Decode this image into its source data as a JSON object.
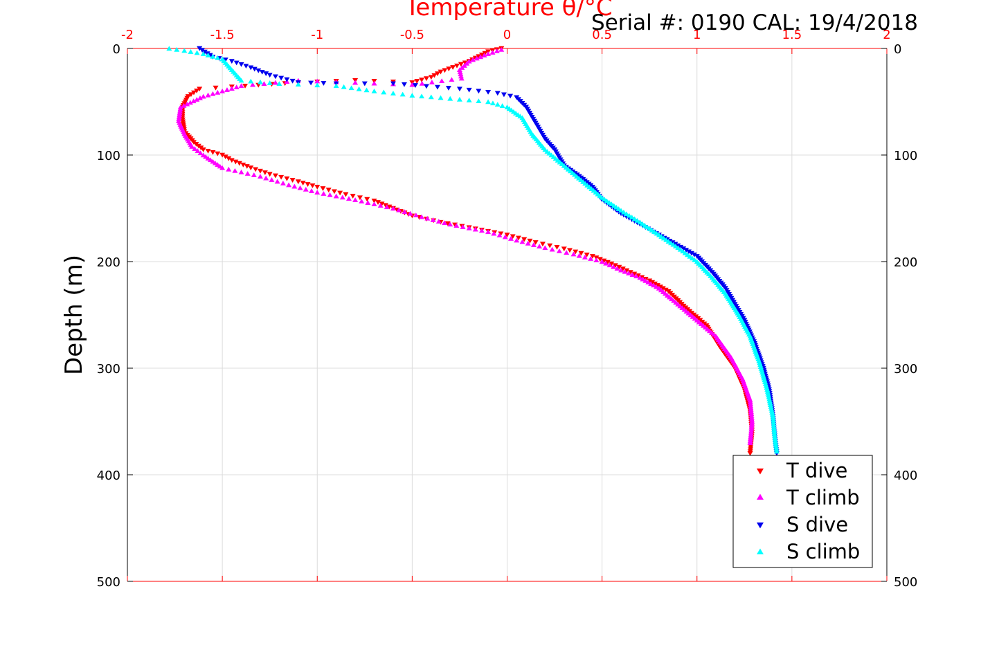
{
  "header": {
    "serial_label": "Serial #: 0190  CAL: 19/4/2018"
  },
  "colors": {
    "t_dive": "#ff0000",
    "t_climb": "#ff00ff",
    "s_dive": "#0000ee",
    "s_climb": "#00ffff",
    "top_axis": "#ff0000",
    "grid": "#dcdcdc"
  },
  "chart_data": {
    "type": "scatter",
    "title": "Temperature θ/°C",
    "xlabel": "Temperature θ/°C",
    "ylabel": "Depth (m)",
    "xlim": [
      -2,
      2
    ],
    "ylim": [
      0,
      500
    ],
    "y_reversed": true,
    "x_ticks": [
      -2,
      -1.5,
      -1,
      -0.5,
      0,
      0.5,
      1,
      1.5,
      2
    ],
    "x_tick_labels": [
      "-2",
      "-1.5",
      "-1",
      "-0.5",
      "0",
      "0.5",
      "1",
      "1.5",
      "2"
    ],
    "y_ticks": [
      0,
      100,
      200,
      300,
      400,
      500
    ],
    "y_tick_labels": [
      "0",
      "100",
      "200",
      "300",
      "400",
      "500"
    ],
    "grid": true,
    "legend_position": "bottom-right",
    "series": [
      {
        "name": "T dive",
        "marker": "triangle-down",
        "points": [
          [
            -0.03,
            0
          ],
          [
            -0.1,
            3
          ],
          [
            -0.2,
            12
          ],
          [
            -0.35,
            22
          ],
          [
            -0.4,
            27
          ],
          [
            -0.5,
            32
          ],
          [
            -0.8,
            30
          ],
          [
            -1.1,
            32
          ],
          [
            -1.45,
            36
          ],
          [
            -1.62,
            38
          ],
          [
            -1.68,
            45
          ],
          [
            -1.71,
            55
          ],
          [
            -1.71,
            65
          ],
          [
            -1.7,
            78
          ],
          [
            -1.65,
            88
          ],
          [
            -1.6,
            95
          ],
          [
            -1.5,
            100
          ],
          [
            -1.45,
            105
          ],
          [
            -1.35,
            112
          ],
          [
            -1.25,
            118
          ],
          [
            -1.1,
            125
          ],
          [
            -1.0,
            130
          ],
          [
            -0.85,
            137
          ],
          [
            -0.7,
            143
          ],
          [
            -0.6,
            150
          ],
          [
            -0.5,
            157
          ],
          [
            -0.35,
            163
          ],
          [
            -0.2,
            168
          ],
          [
            0.0,
            175
          ],
          [
            0.15,
            182
          ],
          [
            0.3,
            188
          ],
          [
            0.45,
            195
          ],
          [
            0.55,
            202
          ],
          [
            0.65,
            210
          ],
          [
            0.75,
            218
          ],
          [
            0.85,
            228
          ],
          [
            0.95,
            245
          ],
          [
            1.05,
            260
          ],
          [
            1.12,
            280
          ],
          [
            1.2,
            300
          ],
          [
            1.25,
            320
          ],
          [
            1.28,
            340
          ],
          [
            1.29,
            360
          ],
          [
            1.28,
            380
          ]
        ]
      },
      {
        "name": "T climb",
        "marker": "triangle-up",
        "points": [
          [
            -0.03,
            1
          ],
          [
            -0.1,
            5
          ],
          [
            -0.2,
            12
          ],
          [
            -0.25,
            20
          ],
          [
            -0.24,
            28
          ],
          [
            -0.5,
            34
          ],
          [
            -0.8,
            32
          ],
          [
            -1.1,
            30
          ],
          [
            -1.4,
            35
          ],
          [
            -1.6,
            45
          ],
          [
            -1.72,
            55
          ],
          [
            -1.73,
            68
          ],
          [
            -1.7,
            80
          ],
          [
            -1.66,
            92
          ],
          [
            -1.6,
            100
          ],
          [
            -1.5,
            112
          ],
          [
            -1.3,
            120
          ],
          [
            -1.15,
            128
          ],
          [
            -1.0,
            135
          ],
          [
            -0.8,
            142
          ],
          [
            -0.6,
            150
          ],
          [
            -0.45,
            158
          ],
          [
            -0.3,
            165
          ],
          [
            -0.1,
            172
          ],
          [
            0.05,
            180
          ],
          [
            0.2,
            187
          ],
          [
            0.35,
            193
          ],
          [
            0.5,
            200
          ],
          [
            0.6,
            208
          ],
          [
            0.7,
            215
          ],
          [
            0.8,
            225
          ],
          [
            0.9,
            240
          ],
          [
            1.0,
            255
          ],
          [
            1.1,
            270
          ],
          [
            1.18,
            290
          ],
          [
            1.24,
            310
          ],
          [
            1.28,
            330
          ],
          [
            1.29,
            350
          ],
          [
            1.28,
            370
          ]
        ]
      },
      {
        "name": "S dive",
        "marker": "triangle-down",
        "points": [
          [
            -1.62,
            0
          ],
          [
            -1.55,
            8
          ],
          [
            -1.45,
            12
          ],
          [
            -1.35,
            18
          ],
          [
            -1.25,
            25
          ],
          [
            -1.1,
            32
          ],
          [
            -0.9,
            33
          ],
          [
            -0.6,
            33
          ],
          [
            -0.25,
            38
          ],
          [
            -0.05,
            42
          ],
          [
            0.05,
            46
          ],
          [
            0.1,
            55
          ],
          [
            0.15,
            70
          ],
          [
            0.2,
            85
          ],
          [
            0.25,
            95
          ],
          [
            0.3,
            110
          ],
          [
            0.38,
            120
          ],
          [
            0.45,
            130
          ],
          [
            0.5,
            142
          ],
          [
            0.6,
            155
          ],
          [
            0.7,
            165
          ],
          [
            0.8,
            175
          ],
          [
            0.9,
            185
          ],
          [
            1.0,
            195
          ],
          [
            1.08,
            210
          ],
          [
            1.15,
            225
          ],
          [
            1.2,
            240
          ],
          [
            1.25,
            255
          ],
          [
            1.3,
            275
          ],
          [
            1.35,
            300
          ],
          [
            1.38,
            320
          ],
          [
            1.4,
            345
          ],
          [
            1.41,
            365
          ],
          [
            1.42,
            380
          ]
        ]
      },
      {
        "name": "S climb",
        "marker": "triangle-up",
        "points": [
          [
            -1.78,
            0
          ],
          [
            -1.7,
            2
          ],
          [
            -1.6,
            5
          ],
          [
            -1.5,
            10
          ],
          [
            -1.45,
            20
          ],
          [
            -1.4,
            30
          ],
          [
            -1.2,
            33
          ],
          [
            -0.9,
            35
          ],
          [
            -0.7,
            40
          ],
          [
            -0.5,
            44
          ],
          [
            -0.3,
            47
          ],
          [
            -0.1,
            50
          ],
          [
            0.0,
            55
          ],
          [
            0.08,
            65
          ],
          [
            0.13,
            80
          ],
          [
            0.2,
            95
          ],
          [
            0.3,
            110
          ],
          [
            0.4,
            125
          ],
          [
            0.5,
            140
          ],
          [
            0.6,
            152
          ],
          [
            0.7,
            163
          ],
          [
            0.8,
            175
          ],
          [
            0.9,
            187
          ],
          [
            1.0,
            200
          ],
          [
            1.08,
            215
          ],
          [
            1.15,
            230
          ],
          [
            1.22,
            250
          ],
          [
            1.28,
            270
          ],
          [
            1.33,
            295
          ],
          [
            1.37,
            320
          ],
          [
            1.4,
            345
          ],
          [
            1.41,
            365
          ],
          [
            1.42,
            378
          ]
        ]
      }
    ]
  }
}
